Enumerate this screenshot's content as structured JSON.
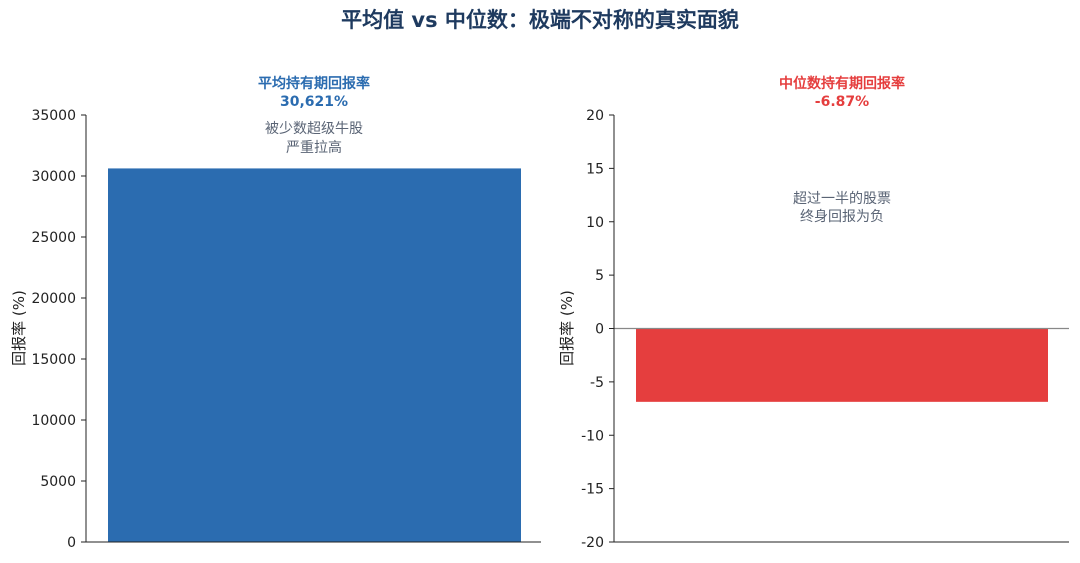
{
  "suptitle": "平均值 vs 中位数：极端不对称的真实面貌",
  "colors": {
    "mean": "#2b6cb0",
    "median": "#e53e3e",
    "title": "#1e3a5f",
    "annotation": "#5a6475",
    "zeroline": "#888888"
  },
  "chart_data": [
    {
      "type": "bar",
      "title": "平均持有期回报率",
      "value_label": "30,621%",
      "ylabel": "回报率 (%)",
      "ylim": [
        0,
        35000
      ],
      "yticks": [
        0,
        5000,
        10000,
        15000,
        20000,
        25000,
        30000,
        35000
      ],
      "categories": [
        ""
      ],
      "values": [
        30621
      ],
      "color": "#2b6cb0",
      "annotation": [
        "被少数超级牛股",
        "严重拉高"
      ]
    },
    {
      "type": "bar",
      "title": "中位数持有期回报率",
      "value_label": "-6.87%",
      "ylabel": "回报率 (%)",
      "ylim": [
        -20,
        20
      ],
      "yticks": [
        -20,
        -15,
        -10,
        -5,
        0,
        5,
        10,
        15,
        20
      ],
      "categories": [
        ""
      ],
      "values": [
        -6.87
      ],
      "color": "#e53e3e",
      "zero_line": true,
      "annotation": [
        "超过一半的股票",
        "终身回报为负"
      ]
    }
  ]
}
